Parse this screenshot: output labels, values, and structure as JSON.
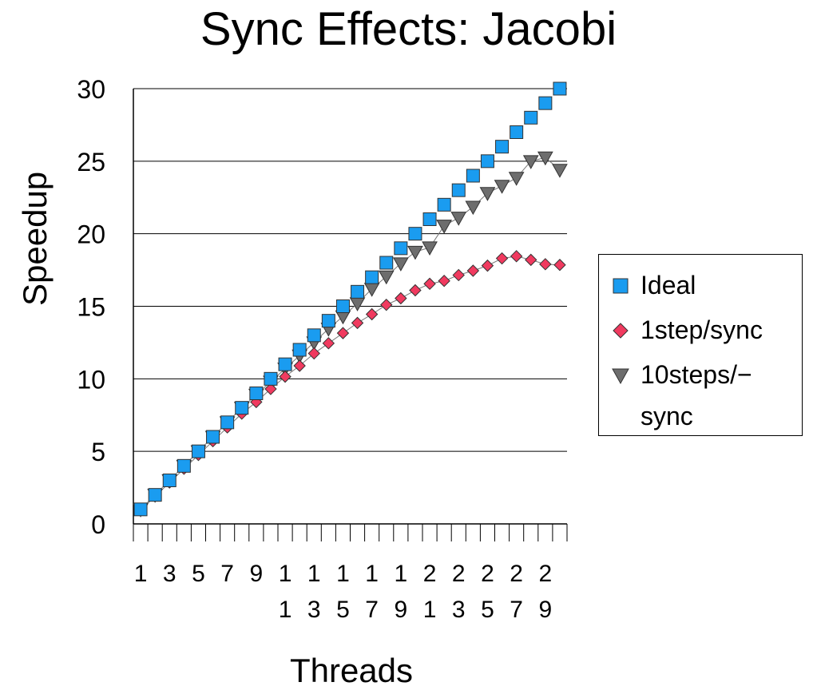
{
  "chart_data": {
    "type": "scatter",
    "title": "Sync Effects: Jacobi",
    "xlabel": "Threads",
    "ylabel": "Speedup",
    "ylim": [
      0,
      30
    ],
    "yticks": [
      0,
      5,
      10,
      15,
      20,
      25,
      30
    ],
    "grid": "horizontal",
    "legend_position": "right",
    "x": [
      1,
      2,
      3,
      4,
      5,
      6,
      7,
      8,
      9,
      10,
      11,
      12,
      13,
      14,
      15,
      16,
      17,
      18,
      19,
      20,
      21,
      22,
      23,
      24,
      25,
      26,
      27,
      28,
      29,
      30
    ],
    "xtick_labels": [
      {
        "x": 1,
        "lines": [
          "1"
        ]
      },
      {
        "x": 3,
        "lines": [
          "3"
        ]
      },
      {
        "x": 5,
        "lines": [
          "5"
        ]
      },
      {
        "x": 7,
        "lines": [
          "7"
        ]
      },
      {
        "x": 9,
        "lines": [
          "9"
        ]
      },
      {
        "x": 11,
        "lines": [
          "1",
          "1"
        ]
      },
      {
        "x": 13,
        "lines": [
          "1",
          "3"
        ]
      },
      {
        "x": 15,
        "lines": [
          "1",
          "5"
        ]
      },
      {
        "x": 17,
        "lines": [
          "1",
          "7"
        ]
      },
      {
        "x": 19,
        "lines": [
          "1",
          "9"
        ]
      },
      {
        "x": 21,
        "lines": [
          "2",
          "1"
        ]
      },
      {
        "x": 23,
        "lines": [
          "2",
          "3"
        ]
      },
      {
        "x": 25,
        "lines": [
          "2",
          "5"
        ]
      },
      {
        "x": 27,
        "lines": [
          "2",
          "7"
        ]
      },
      {
        "x": 29,
        "lines": [
          "2",
          "9"
        ]
      }
    ],
    "series": [
      {
        "name": "Ideal",
        "marker": "square",
        "color": "#1a9cf0",
        "line": false,
        "values": [
          1,
          2,
          3,
          4,
          5,
          6,
          7,
          8,
          9,
          10,
          11,
          12,
          13,
          14,
          15,
          16,
          17,
          18,
          19,
          20,
          21,
          22,
          23,
          24,
          25,
          26,
          27,
          28,
          29,
          30
        ]
      },
      {
        "name": "1step/sync",
        "marker": "diamond",
        "color": "#f03a5f",
        "line": true,
        "values": [
          0.95,
          1.9,
          2.85,
          3.8,
          4.75,
          5.7,
          6.65,
          7.6,
          8.4,
          9.3,
          10.15,
          10.9,
          11.75,
          12.45,
          13.15,
          13.85,
          14.45,
          15.1,
          15.55,
          16.1,
          16.55,
          16.75,
          17.15,
          17.45,
          17.8,
          18.3,
          18.45,
          18.2,
          17.9,
          17.85
        ]
      },
      {
        "name": "10steps/−sync",
        "marker": "triangle-down",
        "color": "#6d6d6d",
        "line": true,
        "values": [
          1,
          2,
          3,
          4,
          5,
          6,
          7,
          8,
          8.9,
          9.8,
          10.7,
          11.6,
          12.5,
          13.45,
          14.3,
          15.2,
          16.2,
          17.05,
          17.95,
          18.75,
          19.05,
          20.55,
          21.1,
          21.85,
          22.8,
          23.3,
          23.85,
          25.0,
          25.25,
          24.4
        ]
      }
    ]
  },
  "legend": {
    "items": [
      {
        "lines": [
          "Ideal"
        ]
      },
      {
        "lines": [
          "1step/sync"
        ]
      },
      {
        "lines": [
          "10steps/−",
          "sync"
        ]
      }
    ]
  }
}
